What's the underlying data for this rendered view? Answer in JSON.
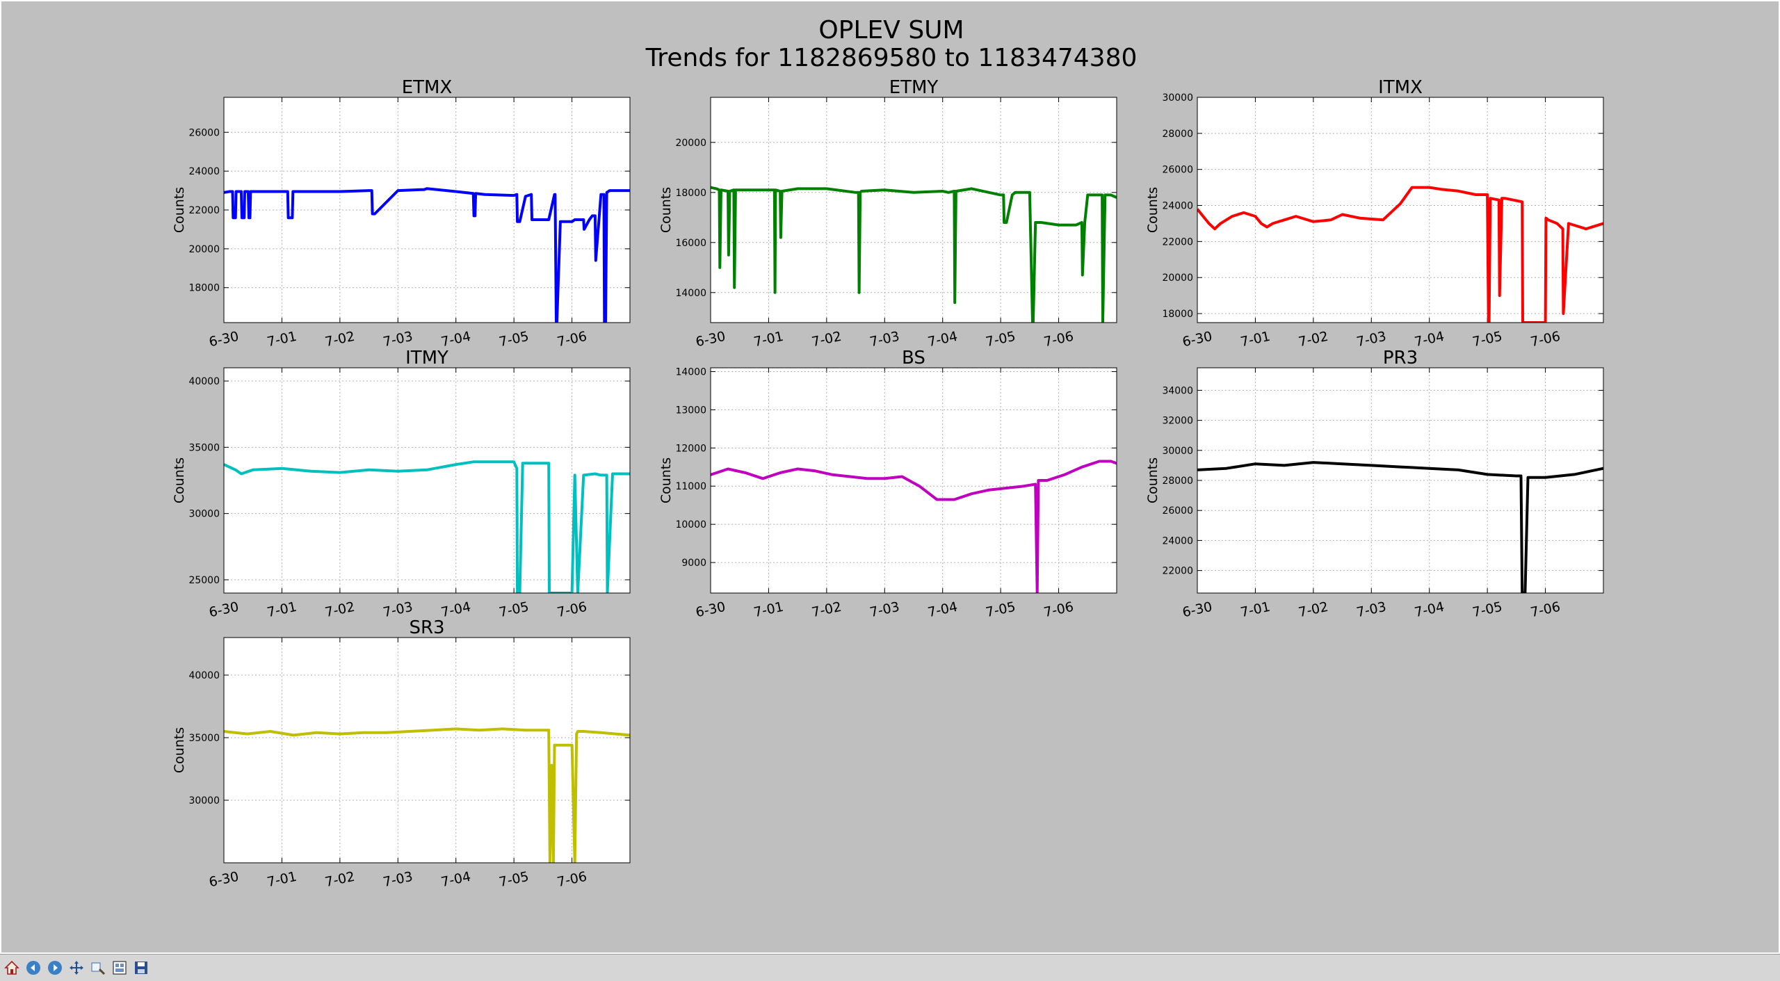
{
  "figure": {
    "title": "OPLEV SUM",
    "subtitle": "Trends for 1182869580 to 1183474380"
  },
  "toolbar": {
    "buttons": [
      "home-icon",
      "back-icon",
      "forward-icon",
      "pan-icon",
      "zoom-icon",
      "subplots-icon",
      "save-icon"
    ]
  },
  "chart_data": [
    {
      "type": "line",
      "title": "ETMX",
      "ylabel": "Counts",
      "color": "#0000ff",
      "xlim": [
        0,
        7
      ],
      "ylim": [
        16200,
        27800
      ],
      "xticks": [
        0,
        1,
        2,
        3,
        4,
        5,
        6
      ],
      "xticklabels": [
        "6-30",
        "7-01",
        "7-02",
        "7-03",
        "7-04",
        "7-05",
        "7-06"
      ],
      "yticks": [
        18000,
        20000,
        22000,
        24000,
        26000
      ],
      "yticklabels": [
        "18000",
        "20000",
        "22000",
        "24000",
        "26000"
      ],
      "grid": true,
      "x": [
        0,
        0.1,
        0.15,
        0.16,
        0.2,
        0.21,
        0.3,
        0.31,
        0.35,
        0.36,
        0.42,
        0.43,
        0.45,
        0.46,
        1.1,
        1.11,
        1.18,
        1.19,
        2.0,
        2.5,
        2.55,
        2.56,
        2.6,
        3.0,
        3.4,
        3.45,
        3.5,
        4.0,
        4.3,
        4.31,
        4.33,
        4.34,
        4.5,
        5.0,
        5.05,
        5.06,
        5.1,
        5.2,
        5.3,
        5.31,
        5.6,
        5.7,
        5.71,
        5.73,
        5.74,
        5.8,
        5.81,
        6.0,
        6.05,
        6.2,
        6.21,
        6.3,
        6.35,
        6.4,
        6.41,
        6.5,
        6.55,
        6.56,
        6.58,
        6.6,
        6.65,
        6.7,
        6.9,
        7.0
      ],
      "y": [
        22900,
        22950,
        22950,
        21600,
        21600,
        22950,
        22950,
        21600,
        21600,
        22950,
        22950,
        21600,
        21600,
        22950,
        22950,
        21600,
        21600,
        22950,
        22950,
        23000,
        23000,
        21800,
        21800,
        23000,
        23050,
        23050,
        23100,
        22950,
        22850,
        21700,
        21700,
        22850,
        22800,
        22750,
        22800,
        21400,
        21400,
        22700,
        22800,
        21500,
        21500,
        22800,
        22800,
        16200,
        16200,
        21400,
        21400,
        21400,
        21500,
        21500,
        21000,
        21500,
        21700,
        21700,
        19400,
        22800,
        22800,
        16200,
        16200,
        22900,
        23000,
        23000,
        23000,
        23000
      ]
    },
    {
      "type": "line",
      "title": "ETMY",
      "ylabel": "Counts",
      "color": "#008000",
      "xlim": [
        0,
        7
      ],
      "ylim": [
        12800,
        21800
      ],
      "xticks": [
        0,
        1,
        2,
        3,
        4,
        5,
        6
      ],
      "xticklabels": [
        "6-30",
        "7-01",
        "7-02",
        "7-03",
        "7-04",
        "7-05",
        "7-06"
      ],
      "yticks": [
        14000,
        16000,
        18000,
        20000
      ],
      "yticklabels": [
        "14000",
        "16000",
        "18000",
        "20000"
      ],
      "grid": true,
      "x": [
        0,
        0.1,
        0.15,
        0.16,
        0.18,
        0.3,
        0.31,
        0.33,
        0.4,
        0.41,
        0.43,
        0.45,
        1.1,
        1.11,
        1.12,
        1.2,
        1.21,
        1.23,
        1.5,
        2.0,
        2.5,
        2.55,
        2.56,
        2.58,
        2.6,
        3.0,
        3.5,
        4.0,
        4.1,
        4.2,
        4.21,
        4.23,
        4.5,
        5.0,
        5.05,
        5.06,
        5.1,
        5.2,
        5.25,
        5.5,
        5.55,
        5.56,
        5.6,
        5.7,
        6.0,
        6.3,
        6.4,
        6.41,
        6.45,
        6.5,
        6.55,
        6.7,
        6.75,
        6.76,
        6.8,
        6.9,
        7.0
      ],
      "y": [
        18200,
        18150,
        18100,
        15000,
        18100,
        18050,
        15500,
        18050,
        18100,
        14200,
        18100,
        18100,
        18100,
        14000,
        18100,
        18050,
        16200,
        18050,
        18150,
        18150,
        18000,
        18000,
        14000,
        18000,
        18050,
        18100,
        18000,
        18050,
        18000,
        18050,
        13600,
        18050,
        18150,
        17900,
        17900,
        16800,
        16800,
        17900,
        18000,
        18000,
        12800,
        12800,
        16800,
        16800,
        16700,
        16700,
        16800,
        14700,
        16800,
        17900,
        17900,
        17900,
        17900,
        12800,
        17900,
        17900,
        17800
      ]
    },
    {
      "type": "line",
      "title": "ITMX",
      "ylabel": "Counts",
      "color": "#ff0000",
      "xlim": [
        0,
        7
      ],
      "ylim": [
        17500,
        30000
      ],
      "xticks": [
        0,
        1,
        2,
        3,
        4,
        5,
        6
      ],
      "xticklabels": [
        "6-30",
        "7-01",
        "7-02",
        "7-03",
        "7-04",
        "7-05",
        "7-06"
      ],
      "yticks": [
        18000,
        20000,
        22000,
        24000,
        26000,
        28000,
        30000
      ],
      "yticklabels": [
        "18000",
        "20000",
        "22000",
        "24000",
        "26000",
        "28000",
        "30000"
      ],
      "grid": true,
      "x": [
        0,
        0.1,
        0.2,
        0.3,
        0.4,
        0.6,
        0.8,
        1.0,
        1.1,
        1.2,
        1.3,
        1.5,
        1.7,
        2.0,
        2.3,
        2.5,
        2.8,
        3.2,
        3.5,
        3.7,
        4.0,
        4.2,
        4.5,
        4.8,
        5.0,
        5.02,
        5.03,
        5.05,
        5.2,
        5.21,
        5.25,
        5.3,
        5.6,
        5.61,
        5.62,
        6.0,
        6.01,
        6.05,
        6.2,
        6.3,
        6.31,
        6.4,
        6.5,
        6.7,
        7.0
      ],
      "y": [
        23800,
        23400,
        23000,
        22700,
        23000,
        23400,
        23600,
        23400,
        23000,
        22800,
        23000,
        23200,
        23400,
        23100,
        23200,
        23500,
        23300,
        23200,
        24100,
        25000,
        25000,
        24900,
        24800,
        24600,
        24600,
        17500,
        17500,
        24400,
        24300,
        19000,
        24400,
        24400,
        24200,
        17500,
        17500,
        17500,
        23300,
        23200,
        23000,
        22700,
        18000,
        23000,
        22900,
        22700,
        23000
      ]
    },
    {
      "type": "line",
      "title": "ITMY",
      "ylabel": "Counts",
      "color": "#00bfbf",
      "xlim": [
        0,
        7
      ],
      "ylim": [
        24000,
        41000
      ],
      "xticks": [
        0,
        1,
        2,
        3,
        4,
        5,
        6
      ],
      "xticklabels": [
        "6-30",
        "7-01",
        "7-02",
        "7-03",
        "7-04",
        "7-05",
        "7-06"
      ],
      "yticks": [
        25000,
        30000,
        35000,
        40000
      ],
      "yticklabels": [
        "25000",
        "30000",
        "35000",
        "40000"
      ],
      "grid": true,
      "x": [
        0,
        0.2,
        0.3,
        0.5,
        1.0,
        1.5,
        2.0,
        2.5,
        3.0,
        3.5,
        4.0,
        4.3,
        4.5,
        5.0,
        5.05,
        5.06,
        5.1,
        5.15,
        5.2,
        5.5,
        5.6,
        5.61,
        5.62,
        6.0,
        6.05,
        6.1,
        6.2,
        6.4,
        6.5,
        6.6,
        6.61,
        6.7,
        7.0
      ],
      "y": [
        33700,
        33300,
        33000,
        33300,
        33400,
        33200,
        33100,
        33300,
        33200,
        33300,
        33700,
        33900,
        33900,
        33900,
        33400,
        24000,
        24000,
        33800,
        33800,
        33800,
        33800,
        24000,
        24000,
        24000,
        32900,
        24000,
        32900,
        33000,
        32900,
        32900,
        24000,
        33000,
        33000
      ]
    },
    {
      "type": "line",
      "title": "BS",
      "ylabel": "Counts",
      "color": "#bf00bf",
      "xlim": [
        0,
        7
      ],
      "ylim": [
        8200,
        14100
      ],
      "xticks": [
        0,
        1,
        2,
        3,
        4,
        5,
        6
      ],
      "xticklabels": [
        "6-30",
        "7-01",
        "7-02",
        "7-03",
        "7-04",
        "7-05",
        "7-06"
      ],
      "yticks": [
        9000,
        10000,
        11000,
        12000,
        13000,
        14000
      ],
      "yticklabels": [
        "9000",
        "10000",
        "11000",
        "12000",
        "13000",
        "14000"
      ],
      "grid": true,
      "x": [
        0,
        0.3,
        0.6,
        0.9,
        1.2,
        1.5,
        1.8,
        2.1,
        2.4,
        2.7,
        3.0,
        3.3,
        3.6,
        3.9,
        4.2,
        4.5,
        4.8,
        5.1,
        5.4,
        5.6,
        5.63,
        5.65,
        5.8,
        6.1,
        6.4,
        6.7,
        6.9,
        7.0
      ],
      "y": [
        11300,
        11450,
        11350,
        11200,
        11350,
        11450,
        11400,
        11300,
        11250,
        11200,
        11200,
        11250,
        11000,
        10650,
        10650,
        10800,
        10900,
        10950,
        11000,
        11050,
        8200,
        11150,
        11150,
        11300,
        11500,
        11650,
        11650,
        11600
      ]
    },
    {
      "type": "line",
      "title": "PR3",
      "ylabel": "Counts",
      "color": "#000000",
      "xlim": [
        0,
        7
      ],
      "ylim": [
        20500,
        35500
      ],
      "xticks": [
        0,
        1,
        2,
        3,
        4,
        5,
        6
      ],
      "xticklabels": [
        "6-30",
        "7-01",
        "7-02",
        "7-03",
        "7-04",
        "7-05",
        "7-06"
      ],
      "yticks": [
        22000,
        24000,
        26000,
        28000,
        30000,
        32000,
        34000
      ],
      "yticklabels": [
        "22000",
        "24000",
        "26000",
        "28000",
        "30000",
        "32000",
        "34000"
      ],
      "grid": true,
      "x": [
        0,
        0.5,
        1.0,
        1.5,
        2.0,
        2.5,
        3.0,
        3.5,
        4.0,
        4.5,
        5.0,
        5.5,
        5.58,
        5.6,
        5.65,
        5.7,
        6.0,
        6.5,
        7.0
      ],
      "y": [
        28700,
        28800,
        29100,
        29000,
        29200,
        29100,
        29000,
        28900,
        28800,
        28700,
        28400,
        28300,
        28300,
        20500,
        20500,
        28200,
        28200,
        28400,
        28800
      ]
    },
    {
      "type": "line",
      "title": "SR3",
      "ylabel": "Counts",
      "color": "#bfbf00",
      "xlim": [
        0,
        7
      ],
      "ylim": [
        25000,
        43000
      ],
      "xticks": [
        0,
        1,
        2,
        3,
        4,
        5,
        6
      ],
      "xticklabels": [
        "6-30",
        "7-01",
        "7-02",
        "7-03",
        "7-04",
        "7-05",
        "7-06"
      ],
      "yticks": [
        30000,
        35000,
        40000
      ],
      "yticklabels": [
        "30000",
        "35000",
        "40000"
      ],
      "grid": true,
      "x": [
        0,
        0.4,
        0.8,
        1.2,
        1.6,
        2.0,
        2.4,
        2.8,
        3.2,
        3.6,
        4.0,
        4.4,
        4.8,
        5.2,
        5.6,
        5.62,
        5.65,
        5.68,
        5.7,
        6.0,
        6.05,
        6.08,
        6.1,
        6.2,
        6.5,
        7.0
      ],
      "y": [
        35500,
        35300,
        35500,
        35200,
        35400,
        35300,
        35400,
        35400,
        35500,
        35600,
        35700,
        35600,
        35700,
        35600,
        35600,
        25000,
        32800,
        25000,
        34400,
        34400,
        25000,
        35300,
        35500,
        35500,
        35400,
        35200
      ]
    }
  ]
}
